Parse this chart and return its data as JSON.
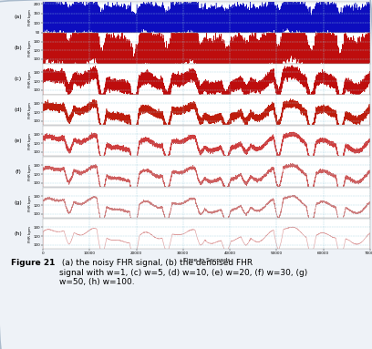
{
  "caption_bold": "Figure 21",
  "caption_text": " (a) the noisy FHR signal, (b) the denoised FHR\nsignal with w=1, (c) w=5, (d) w=10, (e) w=20, (f) w=30, (g)\nw=50, (h) w=100.",
  "xlim": [
    0,
    70000
  ],
  "xticks": [
    0,
    10000,
    20000,
    30000,
    40000,
    50000,
    60000,
    70000
  ],
  "xlabel": "Time in Seconds",
  "subplot_labels": [
    "(a)",
    "(b)",
    "(c)",
    "(d)",
    "(e)",
    "(f)",
    "(g)",
    "(h)"
  ],
  "subplot_colors": [
    "#0000bb",
    "#bb0000",
    "#bb0000",
    "#bb1100",
    "#cc3333",
    "#cc5555",
    "#cc7777",
    "#dd9999"
  ],
  "ylims_a": [
    50,
    210
  ],
  "yticks_a": [
    50,
    100,
    150,
    200
  ],
  "ylims_rest": [
    90,
    160
  ],
  "yticks_rest": [
    100,
    120,
    140
  ],
  "background_color": "#ffffff",
  "fig_bg": "#eef2f7",
  "grid_color": "#99ccdd",
  "seed": 42,
  "n_points": 70000
}
